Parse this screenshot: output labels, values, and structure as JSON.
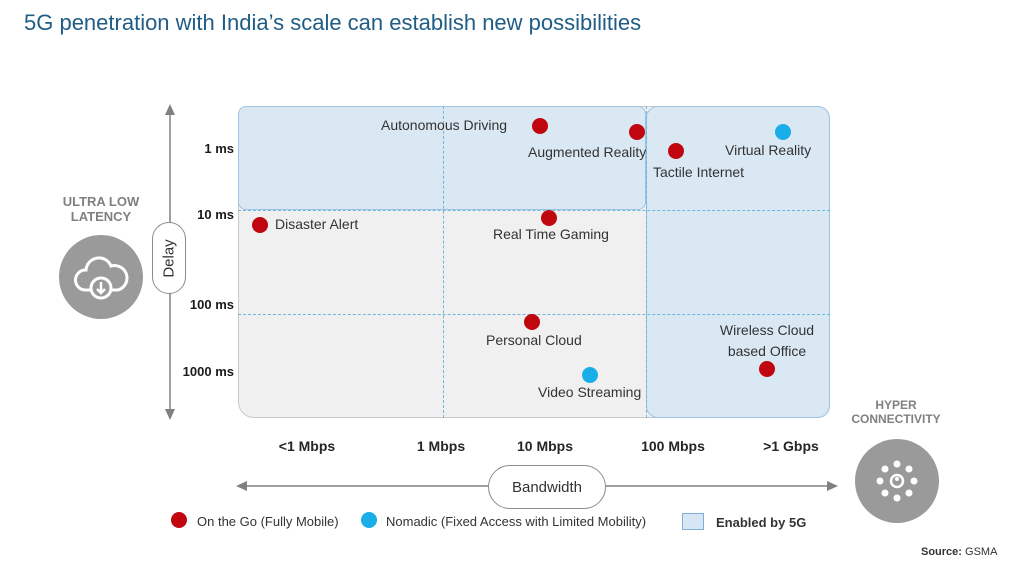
{
  "title": "5G penetration with India’s scale can establish new possibilities",
  "y_axis": {
    "name": "Delay",
    "ticks": [
      "1 ms",
      "10 ms",
      "100 ms",
      "1000 ms"
    ]
  },
  "x_axis": {
    "name": "Bandwidth",
    "ticks": [
      "<1 Mbps",
      "1 Mbps",
      "10 Mbps",
      "100 Mbps",
      ">1 Gbps"
    ]
  },
  "side_labels": {
    "left": "ULTRA LOW LATENCY",
    "right": "HYPER CONNECTIVITY"
  },
  "icons": {
    "left": "cloud-download-icon",
    "right": "network-people-icon"
  },
  "colors": {
    "on_the_go": "#c0070f",
    "nomadic": "#1aaee8",
    "enabled_by_5g": "#d6e6f5",
    "title": "#1f5d86"
  },
  "applications": [
    {
      "label": "Autonomous Driving",
      "category": "on_the_go"
    },
    {
      "label": "Augmented Reality",
      "category": "on_the_go"
    },
    {
      "label": "Tactile Internet",
      "category": "on_the_go"
    },
    {
      "label": "Virtual Reality",
      "category": "nomadic"
    },
    {
      "label": "Disaster Alert",
      "category": "on_the_go"
    },
    {
      "label": "Real Time Gaming",
      "category": "on_the_go"
    },
    {
      "label": "Personal Cloud",
      "category": "on_the_go"
    },
    {
      "label": "Video Streaming",
      "category": "nomadic"
    },
    {
      "label": "Wireless Cloud based Office",
      "category": "on_the_go"
    }
  ],
  "legend": {
    "on_the_go": "On the Go (Fully Mobile)",
    "nomadic": "Nomadic (Fixed Access with Limited Mobility)",
    "enabled": "Enabled by 5G"
  },
  "source": {
    "label": "Source:",
    "value": "GSMA"
  }
}
